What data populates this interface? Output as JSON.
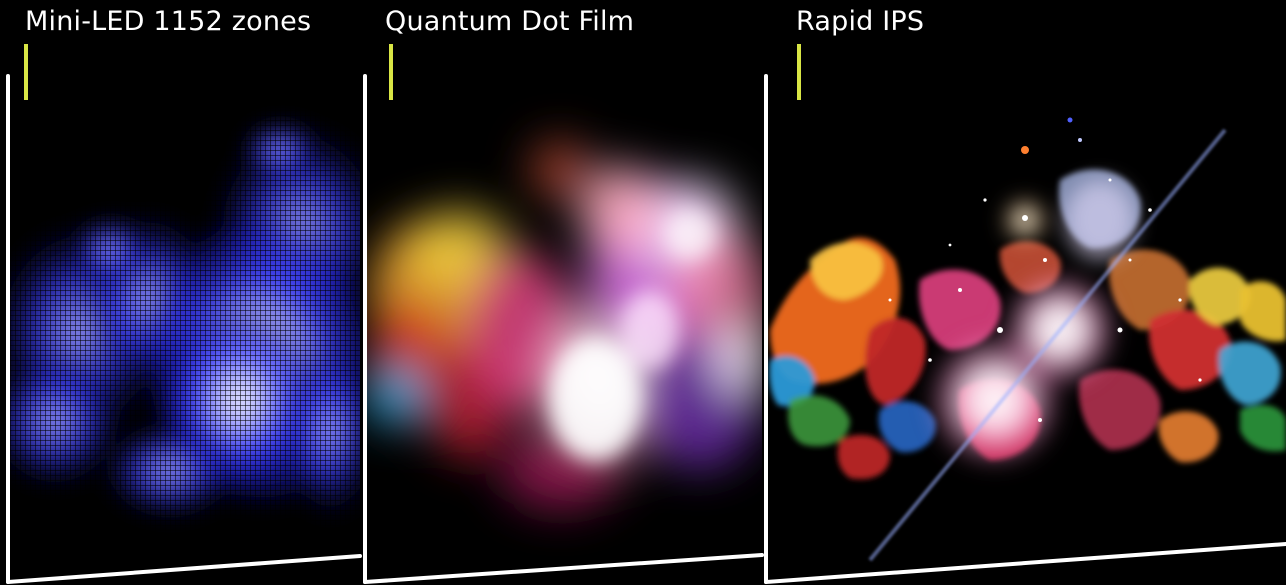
{
  "layers": [
    {
      "label": "Mini-LED 1152 zones",
      "tick_color": "#d9e645"
    },
    {
      "label": "Quantum Dot Film",
      "tick_color": "#d9e645"
    },
    {
      "label": "Rapid IPS",
      "tick_color": "#d9e645"
    }
  ],
  "colors": {
    "background": "#000000",
    "panel_frame": "#ffffff",
    "led_blue": "#2a2cf0",
    "led_core": "#dcdcff",
    "accent_tick": "#d9e645"
  }
}
